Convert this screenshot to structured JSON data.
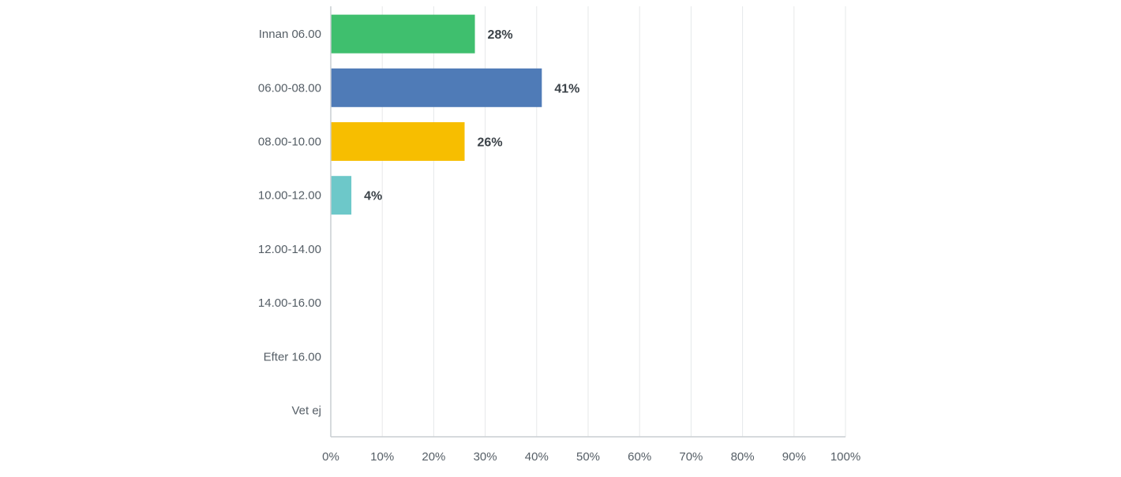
{
  "chart_data": {
    "type": "bar",
    "orientation": "horizontal",
    "categories": [
      "Innan 06.00",
      "06.00-08.00",
      "08.00-10.00",
      "10.00-12.00",
      "12.00-14.00",
      "14.00-16.00",
      "Efter 16.00",
      "Vet ej"
    ],
    "values": [
      28,
      41,
      26,
      4,
      0,
      0,
      0,
      0
    ],
    "data_labels": [
      "28%",
      "41%",
      "26%",
      "4%",
      "",
      "",
      "",
      ""
    ],
    "bar_colors": [
      "#3fbf6e",
      "#4f7bb7",
      "#f7be00",
      "#6dc8c9",
      "#c0c0c0",
      "#c0c0c0",
      "#c0c0c0",
      "#c0c0c0"
    ],
    "x_ticks": [
      0,
      10,
      20,
      30,
      40,
      50,
      60,
      70,
      80,
      90,
      100
    ],
    "x_tick_labels": [
      "0%",
      "10%",
      "20%",
      "30%",
      "40%",
      "50%",
      "60%",
      "70%",
      "80%",
      "90%",
      "100%"
    ],
    "xlim": [
      0,
      100
    ],
    "title": "",
    "xlabel": "",
    "ylabel": "",
    "grid": "vertical",
    "legend": "none"
  }
}
